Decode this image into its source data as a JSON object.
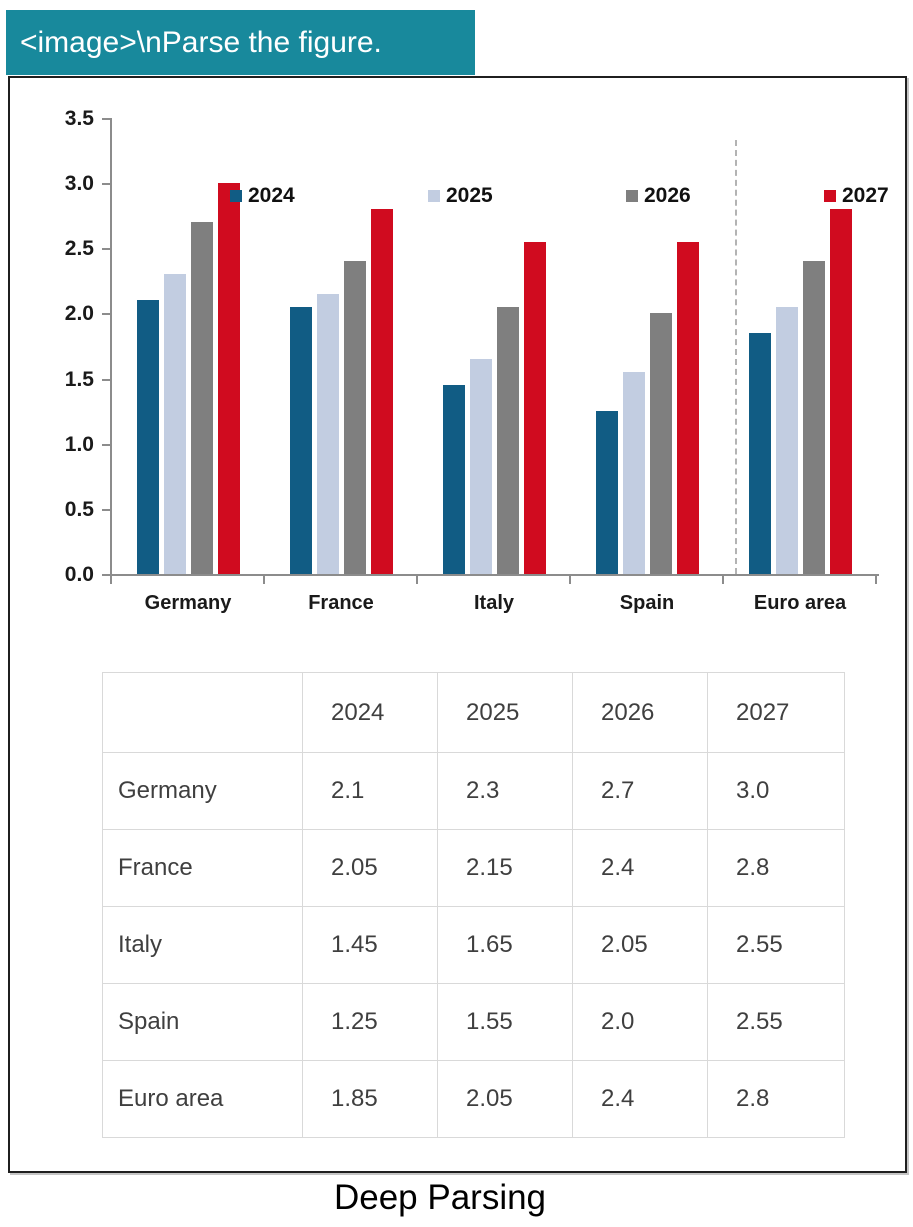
{
  "banner": {
    "text": "<image>\\nParse the figure.",
    "background_color": "#18899c",
    "text_color": "#ffffff"
  },
  "caption": {
    "text": "Deep Parsing"
  },
  "chart_data": {
    "type": "bar",
    "title": "",
    "xlabel": "",
    "ylabel": "",
    "categories": [
      "Germany",
      "France",
      "Italy",
      "Spain",
      "Euro area"
    ],
    "series": [
      {
        "name": "2024",
        "color": "#115c84",
        "values": [
          2.1,
          2.05,
          1.45,
          1.25,
          1.85
        ]
      },
      {
        "name": "2025",
        "color": "#c2cde1",
        "values": [
          2.3,
          2.15,
          1.65,
          1.55,
          2.05
        ]
      },
      {
        "name": "2026",
        "color": "#7f7f7f",
        "values": [
          2.7,
          2.4,
          2.05,
          2.0,
          2.4
        ]
      },
      {
        "name": "2027",
        "color": "#d00b1f",
        "values": [
          3.0,
          2.8,
          2.55,
          2.55,
          2.8
        ]
      }
    ],
    "ylim": [
      0,
      3.5
    ],
    "y_ticks": [
      "0.0",
      "0.5",
      "1.0",
      "1.5",
      "2.0",
      "2.5",
      "3.0",
      "3.5"
    ],
    "grid": false,
    "legend_position": "top",
    "separator_before_category": "Euro area",
    "separator_style": "dashed"
  },
  "table": {
    "columns": [
      "",
      "2024",
      "2025",
      "2026",
      "2027"
    ],
    "rows": [
      {
        "label": "Germany",
        "values": [
          "2.1",
          "2.3",
          "2.7",
          "3.0"
        ]
      },
      {
        "label": "France",
        "values": [
          "2.05",
          "2.15",
          "2.4",
          "2.8"
        ]
      },
      {
        "label": "Italy",
        "values": [
          "1.45",
          "1.65",
          "2.05",
          "2.55"
        ]
      },
      {
        "label": "Spain",
        "values": [
          "1.25",
          "1.55",
          "2.0",
          "2.55"
        ]
      },
      {
        "label": "Euro area",
        "values": [
          "1.85",
          "2.05",
          "2.4",
          "2.8"
        ]
      }
    ]
  }
}
